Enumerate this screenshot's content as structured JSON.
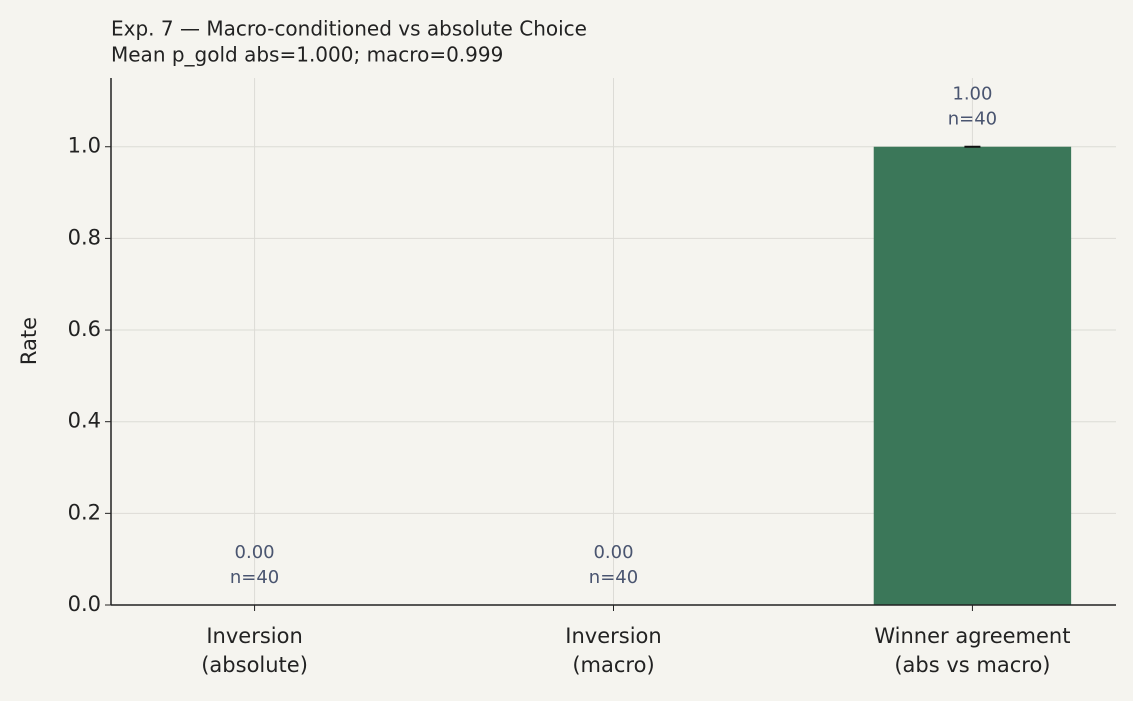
{
  "chart_data": {
    "type": "bar",
    "title": "Exp. 7 — Macro-conditioned vs absolute Choice",
    "subtitle": "Mean p_gold abs=1.000; macro=0.999",
    "y_label": "Rate",
    "categories": [
      [
        "Inversion",
        "(absolute)"
      ],
      [
        "Inversion",
        "(macro)"
      ],
      [
        "Winner agreement",
        "(abs vs macro)"
      ]
    ],
    "values": [
      0,
      0,
      1
    ],
    "errors": [
      0,
      0,
      0
    ],
    "value_labels": [
      "0.00",
      "0.00",
      "1.00"
    ],
    "n_labels": [
      "n=40",
      "n=40",
      "n=40"
    ],
    "color": "#3b7759",
    "ylim": [
      0,
      1.15
    ],
    "yticks": [
      {
        "value": 0,
        "label": "0.0"
      },
      0.2,
      0.4,
      0.6,
      0.8,
      {
        "value": 1,
        "label": "1.0"
      }
    ],
    "grid": true
  }
}
